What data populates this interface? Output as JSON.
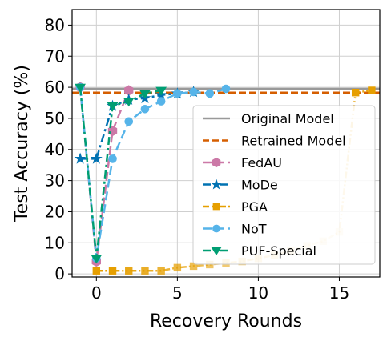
{
  "chart_data": {
    "type": "line",
    "xlabel": "Recovery Rounds",
    "ylabel": "Test Accuracy (%)",
    "xlim": [
      -1.5,
      17.5
    ],
    "ylim": [
      -1,
      85
    ],
    "xticks": [
      0,
      5,
      10,
      15
    ],
    "yticks": [
      0,
      10,
      20,
      30,
      40,
      50,
      60,
      70,
      80
    ],
    "grid": true,
    "legend_position": "lower-right",
    "reference_lines": [
      {
        "name": "Original Model",
        "y": 59.5,
        "color": "#999999",
        "style": "solid"
      },
      {
        "name": "Retrained Model",
        "y": 58.3,
        "color": "#d55e00",
        "style": "dashed"
      }
    ],
    "series": [
      {
        "name": "FedAU",
        "color": "#cc79a7",
        "marker": "hexagon",
        "dash": "dash",
        "x": [
          -1,
          0,
          1,
          2
        ],
        "y": [
          60,
          4,
          46,
          59
        ]
      },
      {
        "name": "MoDe",
        "color": "#0072b2",
        "marker": "star",
        "dash": "dashdot",
        "x": [
          -1,
          0,
          1,
          2,
          3,
          4,
          5,
          6
        ],
        "y": [
          37,
          37,
          54,
          56,
          56.5,
          57.5,
          58,
          58.5
        ]
      },
      {
        "name": "PGA",
        "color": "#e69f00",
        "marker": "square",
        "dash": "dashdotdot",
        "fade": true,
        "x": [
          0,
          1,
          2,
          3,
          4,
          5,
          6,
          7,
          8,
          9,
          10,
          11,
          12,
          13,
          14,
          15,
          16,
          17
        ],
        "y": [
          1,
          1,
          1,
          1,
          1,
          2,
          2.5,
          3,
          3.5,
          4,
          5,
          6,
          7.5,
          9,
          10.5,
          13.5,
          58.3,
          59
        ]
      },
      {
        "name": "NoT",
        "color": "#56b4e9",
        "marker": "circle",
        "dash": "dash",
        "x": [
          -1,
          0,
          1,
          2,
          3,
          4,
          5,
          6,
          7,
          8
        ],
        "y": [
          60,
          5,
          37,
          49,
          53,
          55.5,
          58,
          58.5,
          58,
          59.5
        ]
      },
      {
        "name": "PUF-Special",
        "color": "#009e73",
        "marker": "triangle-down",
        "dash": "dashdot",
        "x": [
          -1,
          0,
          1,
          2,
          3,
          4
        ],
        "y": [
          60,
          5,
          54,
          55.5,
          58,
          59
        ]
      }
    ]
  }
}
